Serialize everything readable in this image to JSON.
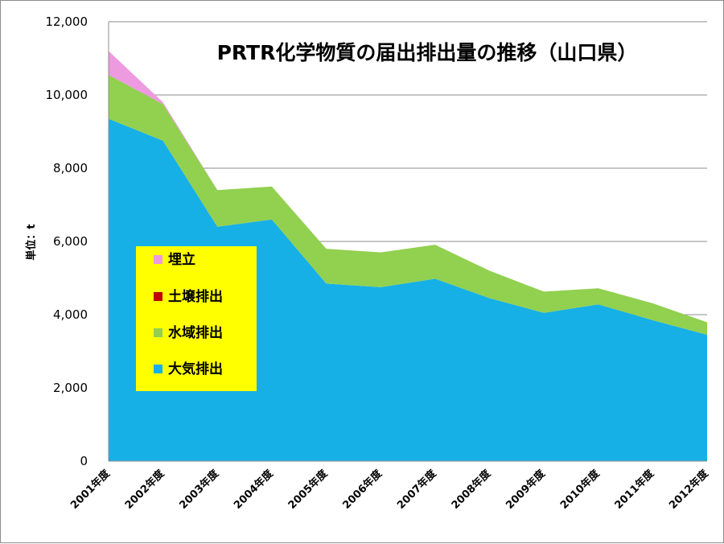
{
  "chart_data": {
    "type": "area",
    "stacked": true,
    "title": "PRTR化学物質の届出排出量の推移（山口県）",
    "ylabel": "単位：t",
    "xlabel": "",
    "ylim": [
      0,
      12000
    ],
    "yticks": [
      0,
      2000,
      4000,
      6000,
      8000,
      10000,
      12000
    ],
    "ytick_labels": [
      "0",
      "2,000",
      "4,000",
      "6,000",
      "8,000",
      "10,000",
      "12,000"
    ],
    "grid": true,
    "legend_position": "left-middle",
    "categories": [
      "2001年度",
      "2002年度",
      "2003年度",
      "2004年度",
      "2005年度",
      "2006年度",
      "2007年度",
      "2008年度",
      "2009年度",
      "2010年度",
      "2011年度",
      "2012年度"
    ],
    "series": [
      {
        "name": "大気排出",
        "color": "#16b0e6",
        "values": [
          9350,
          8750,
          6400,
          6600,
          4850,
          4750,
          4980,
          4450,
          4050,
          4280,
          3850,
          3450
        ]
      },
      {
        "name": "水域排出",
        "color": "#92d050",
        "values": [
          1200,
          1000,
          1000,
          900,
          950,
          950,
          930,
          750,
          580,
          440,
          460,
          340
        ]
      },
      {
        "name": "土壌排出",
        "color": "#c00000",
        "values": [
          0,
          0,
          0,
          0,
          0,
          0,
          0,
          0,
          0,
          0,
          0,
          0
        ]
      },
      {
        "name": "埋立",
        "color": "#ee9ae0",
        "values": [
          650,
          50,
          0,
          0,
          0,
          0,
          0,
          0,
          0,
          0,
          0,
          0
        ]
      }
    ],
    "legend_order": [
      "埋立",
      "土壌排出",
      "水域排出",
      "大気排出"
    ],
    "legend_background": "#ffff00"
  }
}
